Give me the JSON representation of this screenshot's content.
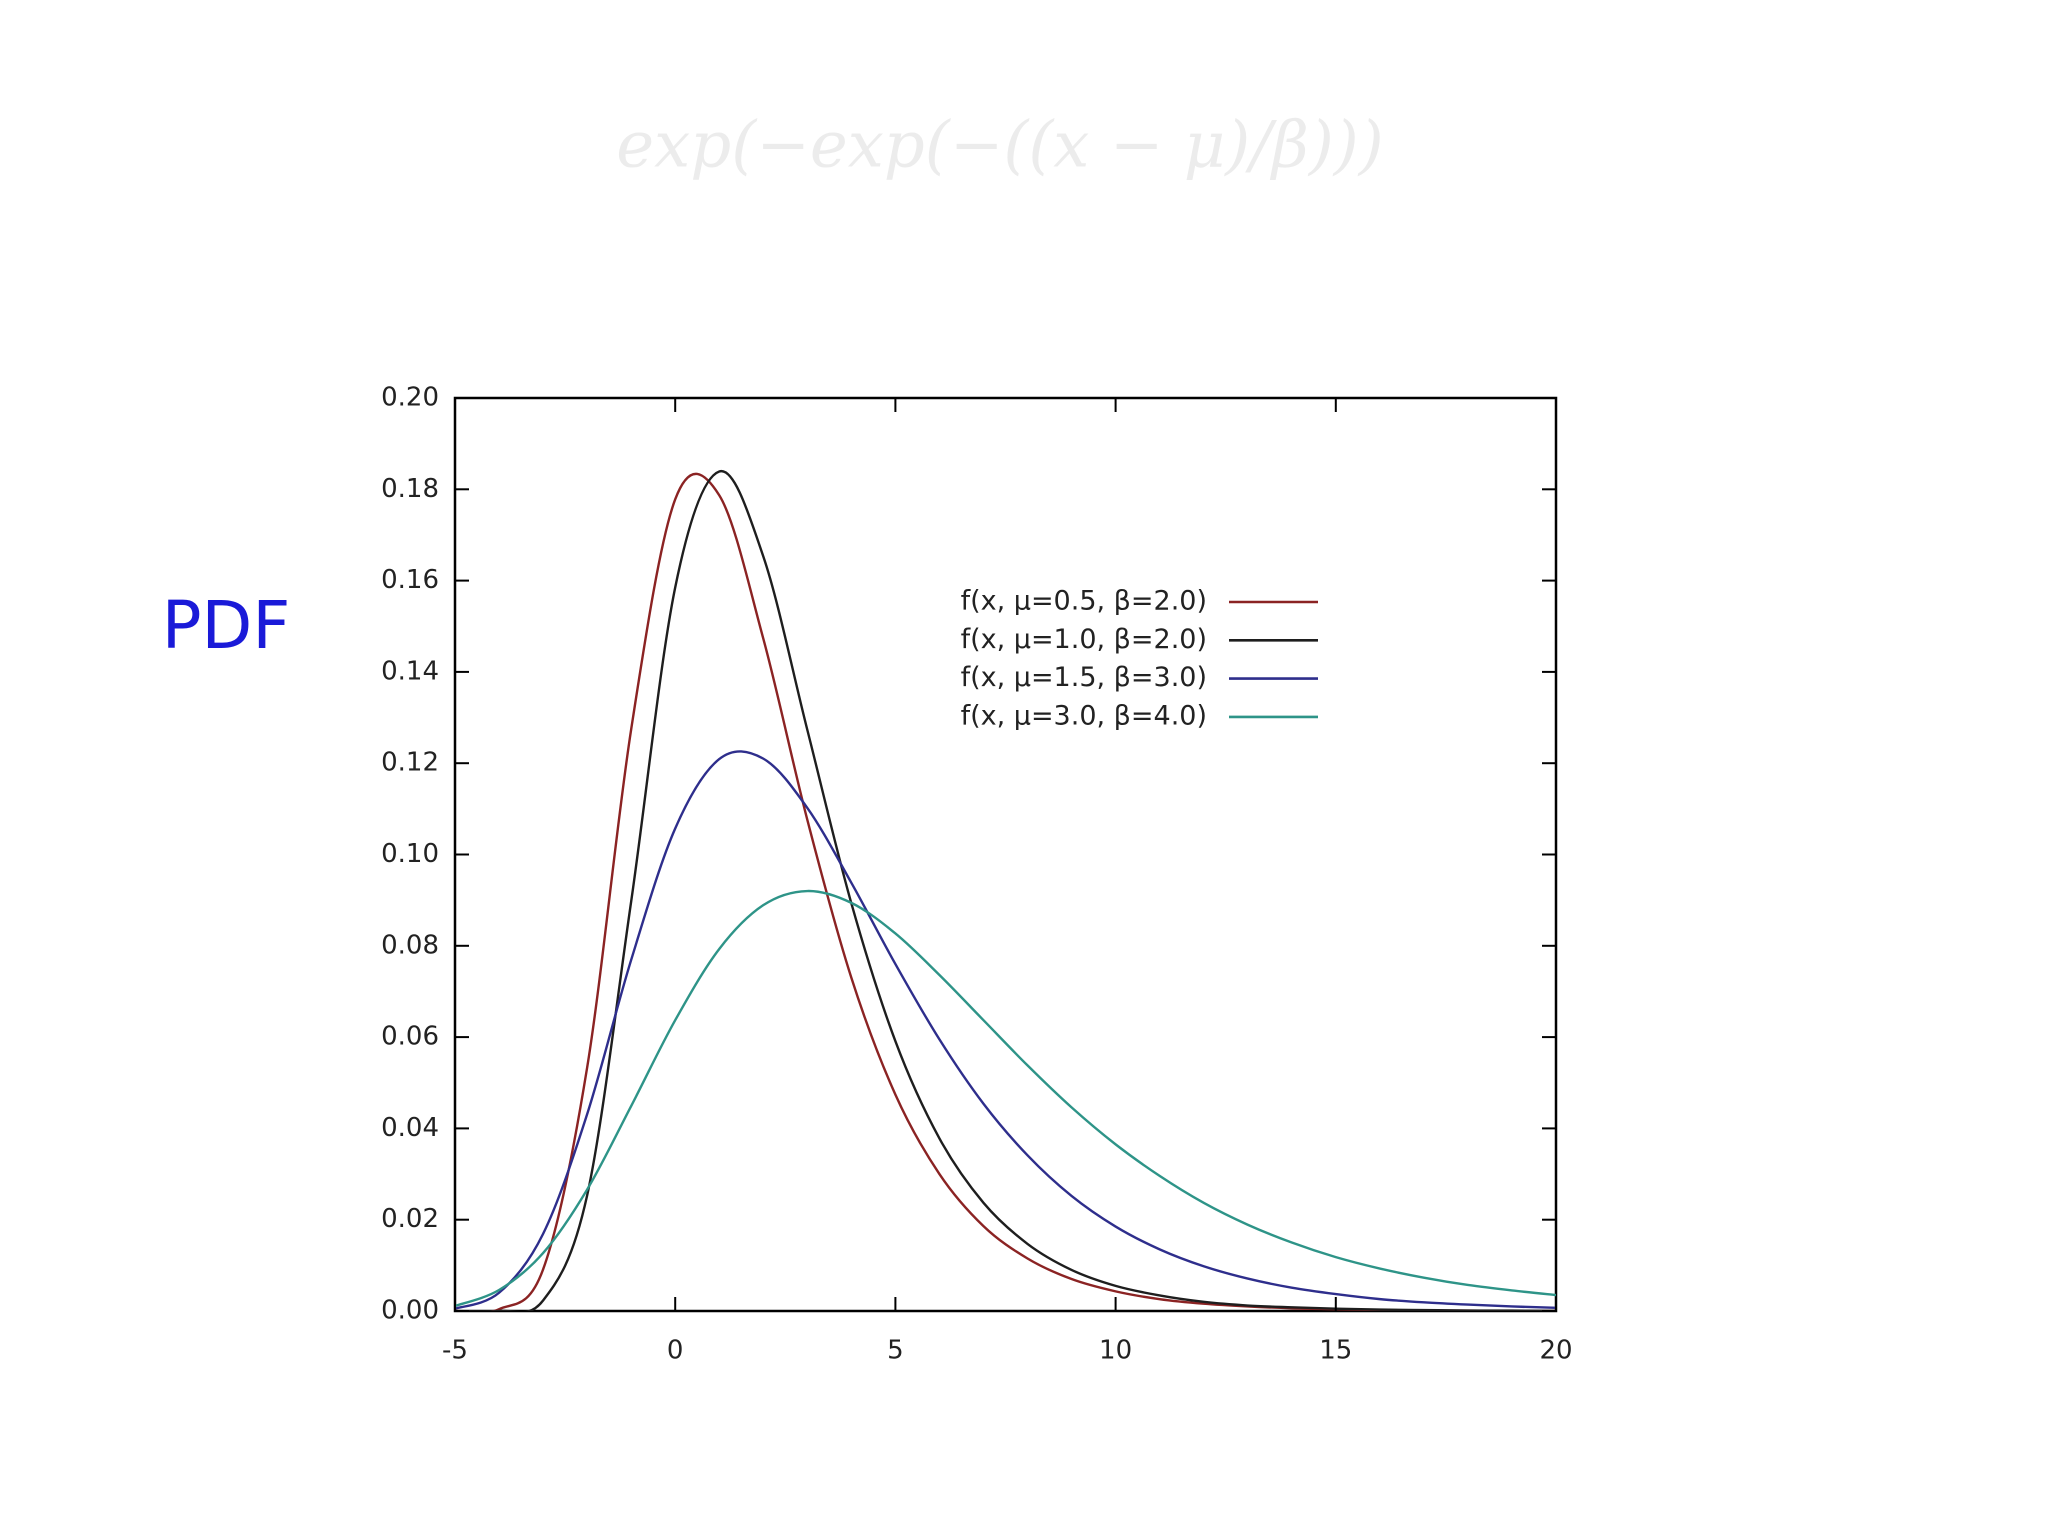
{
  "chart_data": {
    "type": "line",
    "title": "exp(−exp(−((x − μ)/β)))",
    "ylabel": "PDF",
    "x": [
      -5,
      -4,
      -3,
      -2,
      -1,
      0,
      1,
      2,
      3,
      4,
      5,
      6,
      7,
      8,
      9,
      10,
      11,
      12,
      13,
      14,
      15,
      16,
      17,
      18,
      19,
      20
    ],
    "series": [
      {
        "name": "f(x, μ=0.5, β=2.0)",
        "color": "#8b2323",
        "values": [
          0.0,
          0.0004,
          0.0091,
          0.0533,
          0.1274,
          0.1778,
          0.1787,
          0.1473,
          0.1076,
          0.073,
          0.0474,
          0.03,
          0.0186,
          0.0115,
          0.007,
          0.0043,
          0.0026,
          0.0016,
          0.001,
          0.0006,
          0.0004,
          0.0002,
          0.0001,
          0.0001,
          0.0,
          0.0
        ]
      },
      {
        "name": "f(x, μ=1.0, β=2.0)",
        "color": "#1e1e1e",
        "values": [
          0.0,
          0.0,
          0.0023,
          0.0253,
          0.0897,
          0.1585,
          0.1839,
          0.1653,
          0.1273,
          0.0893,
          0.0591,
          0.0378,
          0.0237,
          0.0147,
          0.009,
          0.0055,
          0.0034,
          0.002,
          0.0012,
          0.0008,
          0.0005,
          0.0003,
          0.0002,
          0.0001,
          0.0001,
          0.0
        ]
      },
      {
        "name": "f(x, μ=1.5, β=3.0)",
        "color": "#2e2e8c",
        "values": [
          0.0005,
          0.004,
          0.0169,
          0.0431,
          0.0769,
          0.1057,
          0.1209,
          0.121,
          0.1102,
          0.0938,
          0.076,
          0.0595,
          0.0454,
          0.0341,
          0.0252,
          0.0185,
          0.0135,
          0.0098,
          0.0071,
          0.0051,
          0.0037,
          0.0026,
          0.0019,
          0.0014,
          0.001,
          0.0007
        ]
      },
      {
        "name": "f(x, μ=3.0, β=4.0)",
        "color": "#2e9488",
        "values": [
          0.0011,
          0.0046,
          0.0127,
          0.0266,
          0.0449,
          0.0637,
          0.0793,
          0.0889,
          0.092,
          0.0894,
          0.0827,
          0.0736,
          0.0637,
          0.0538,
          0.0446,
          0.0365,
          0.0296,
          0.0237,
          0.0189,
          0.015,
          0.0118,
          0.0093,
          0.0073,
          0.0057,
          0.0045,
          0.0035
        ]
      }
    ],
    "xlim": [
      -5,
      20
    ],
    "xticks": [
      -5,
      0,
      5,
      10,
      15,
      20
    ],
    "ylim": [
      0,
      0.2
    ],
    "yticks": [
      {
        "value": 0,
        "label": "0.00"
      },
      {
        "value": 0.02,
        "label": "0.02"
      },
      {
        "value": 0.04,
        "label": "0.04"
      },
      {
        "value": 0.06,
        "label": "0.06"
      },
      {
        "value": 0.08,
        "label": "0.08"
      },
      {
        "value": 0.1,
        "label": "0.10"
      },
      {
        "value": 0.12,
        "label": "0.12"
      },
      {
        "value": 0.14,
        "label": "0.14"
      },
      {
        "value": 0.16,
        "label": "0.16"
      },
      {
        "value": 0.18,
        "label": "0.18"
      },
      {
        "value": 0.2,
        "label": "0.20"
      }
    ],
    "grid": false,
    "legend": "upper-right"
  }
}
